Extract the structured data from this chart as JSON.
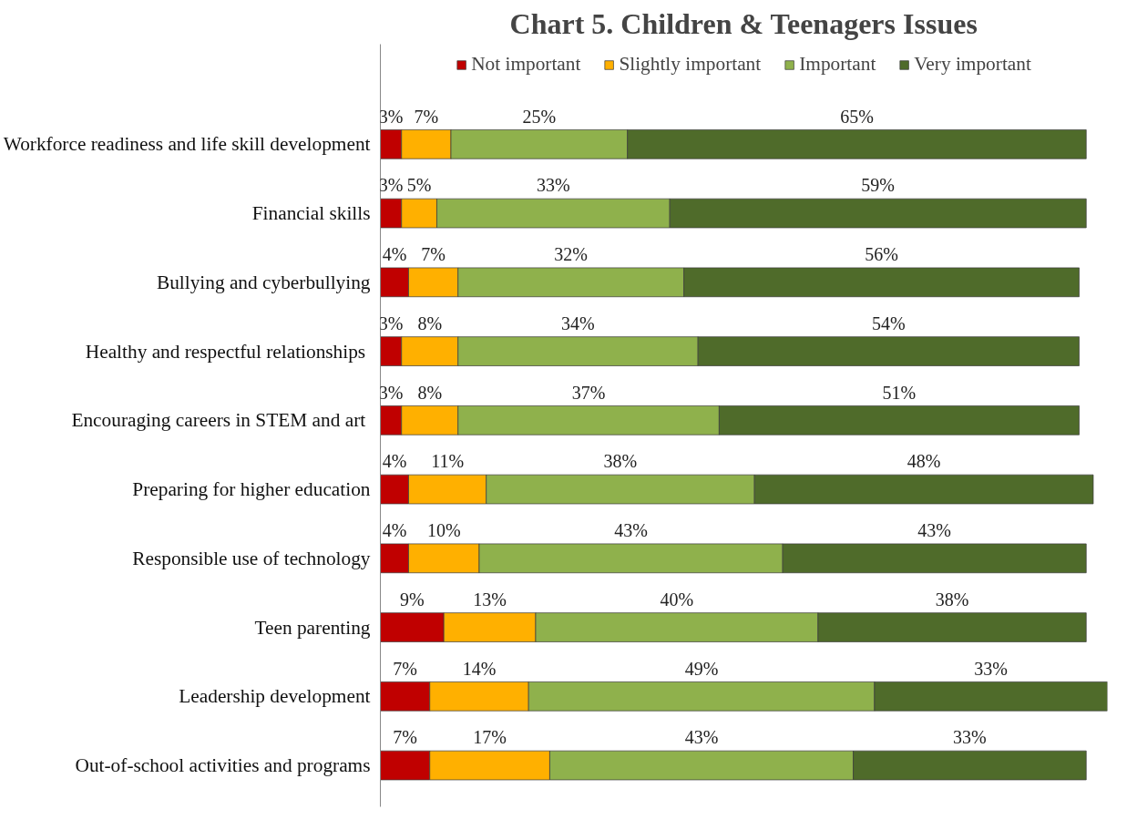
{
  "chart_data": {
    "type": "bar",
    "orientation": "horizontal",
    "stacked": true,
    "title": "Chart 5. Children & Teenagers Issues",
    "legend": "top",
    "grid": false,
    "categories": [
      "Workforce readiness and life skill development",
      "Financial skills",
      "Bullying and cyberbullying",
      "Healthy and  respectful relationships",
      "Encouraging careers in STEM and art ",
      "Preparing for higher education",
      "Responsible use of technology",
      "Teen parenting",
      "Leadership development",
      "Out-of-school activities and programs"
    ],
    "series": [
      {
        "name": "Not important",
        "color": "#c00000",
        "values": [
          3,
          3,
          4,
          3,
          3,
          4,
          4,
          9,
          7,
          7
        ],
        "value_labels": [
          "3%",
          "3%",
          "4%",
          "3%",
          "3%",
          "4%",
          "4%",
          "9%",
          "7%",
          "7%"
        ]
      },
      {
        "name": "Slightly important",
        "color": "#ffb000",
        "values": [
          7,
          5,
          7,
          8,
          8,
          11,
          10,
          13,
          14,
          17
        ],
        "value_labels": [
          "7%",
          "5%",
          "7%",
          "8%",
          "8%",
          "11%",
          "10%",
          "13%",
          "14%",
          "17%"
        ]
      },
      {
        "name": "Important",
        "color": "#8fb14c",
        "values": [
          25,
          33,
          32,
          34,
          37,
          38,
          43,
          40,
          49,
          43
        ],
        "value_labels": [
          "25%",
          "33%",
          "32%",
          "34%",
          "37%",
          "38%",
          "43%",
          "40%",
          "49%",
          "43%"
        ]
      },
      {
        "name": "Very important",
        "color": "#4f6b2a",
        "values": [
          65,
          59,
          56,
          54,
          51,
          48,
          43,
          38,
          33,
          33
        ],
        "value_labels": [
          "65%",
          "59%",
          "56%",
          "54%",
          "51%",
          "48%",
          "43%",
          "38%",
          "33%",
          "33%"
        ]
      }
    ]
  }
}
